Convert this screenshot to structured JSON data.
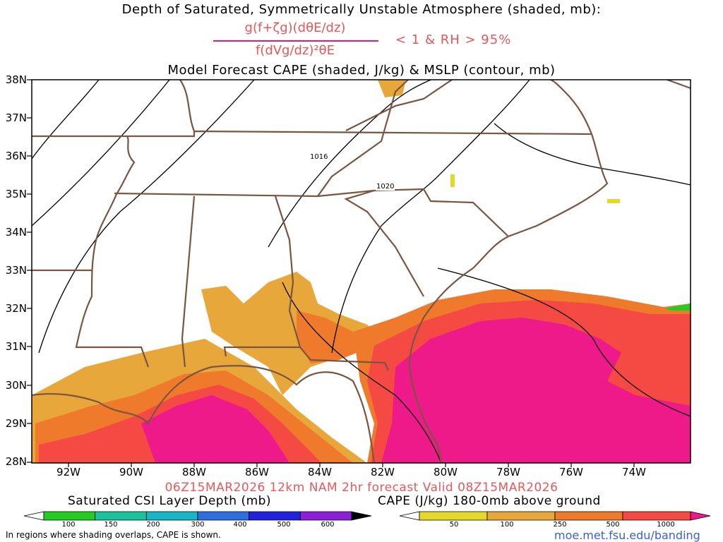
{
  "titles": {
    "line1": "Depth of Saturated, Symmetrically Unstable Atmosphere (shaded, mb):",
    "numerator": "g(f+ζg)(dθE/dz)",
    "denominator": "f(dVg/dz)²θE",
    "condition": "< 1 & RH > 95%",
    "line3": "Model Forecast CAPE (shaded, J/kg) & MSLP (contour, mb)"
  },
  "axes": {
    "lat_labels": [
      "38N",
      "37N",
      "36N",
      "35N",
      "34N",
      "33N",
      "32N",
      "31N",
      "30N",
      "29N",
      "28N"
    ],
    "lon_labels": [
      "92W",
      "90W",
      "88W",
      "86W",
      "84W",
      "82W",
      "80W",
      "78W",
      "76W",
      "74W"
    ]
  },
  "isobars": {
    "labels": [
      "1016",
      "1020"
    ]
  },
  "valid_line": "06Z15MAR2026 12km NAM 2hr forecast Valid 08Z15MAR2026",
  "legend_csi": {
    "title": "Saturated CSI Layer Depth (mb)",
    "ticks": [
      "100",
      "150",
      "200",
      "300",
      "400",
      "500",
      "600"
    ],
    "colors": [
      "#ffffff",
      "#22cc22",
      "#19c49b",
      "#18b4c8",
      "#2f6ee0",
      "#2222dd",
      "#8c1fd8",
      "#000000"
    ]
  },
  "legend_cape": {
    "title": "CAPE (J/kg) 180-0mb above ground",
    "ticks": [
      "50",
      "100",
      "250",
      "500",
      "1000"
    ],
    "colors": [
      "#ffffff",
      "#e6d82a",
      "#e8a73a",
      "#f07a2b",
      "#f54a44",
      "#ee1a8a"
    ]
  },
  "footnote": "In regions where shading overlaps, CAPE is shown.",
  "url": "moe.met.fsu.edu/banding"
}
